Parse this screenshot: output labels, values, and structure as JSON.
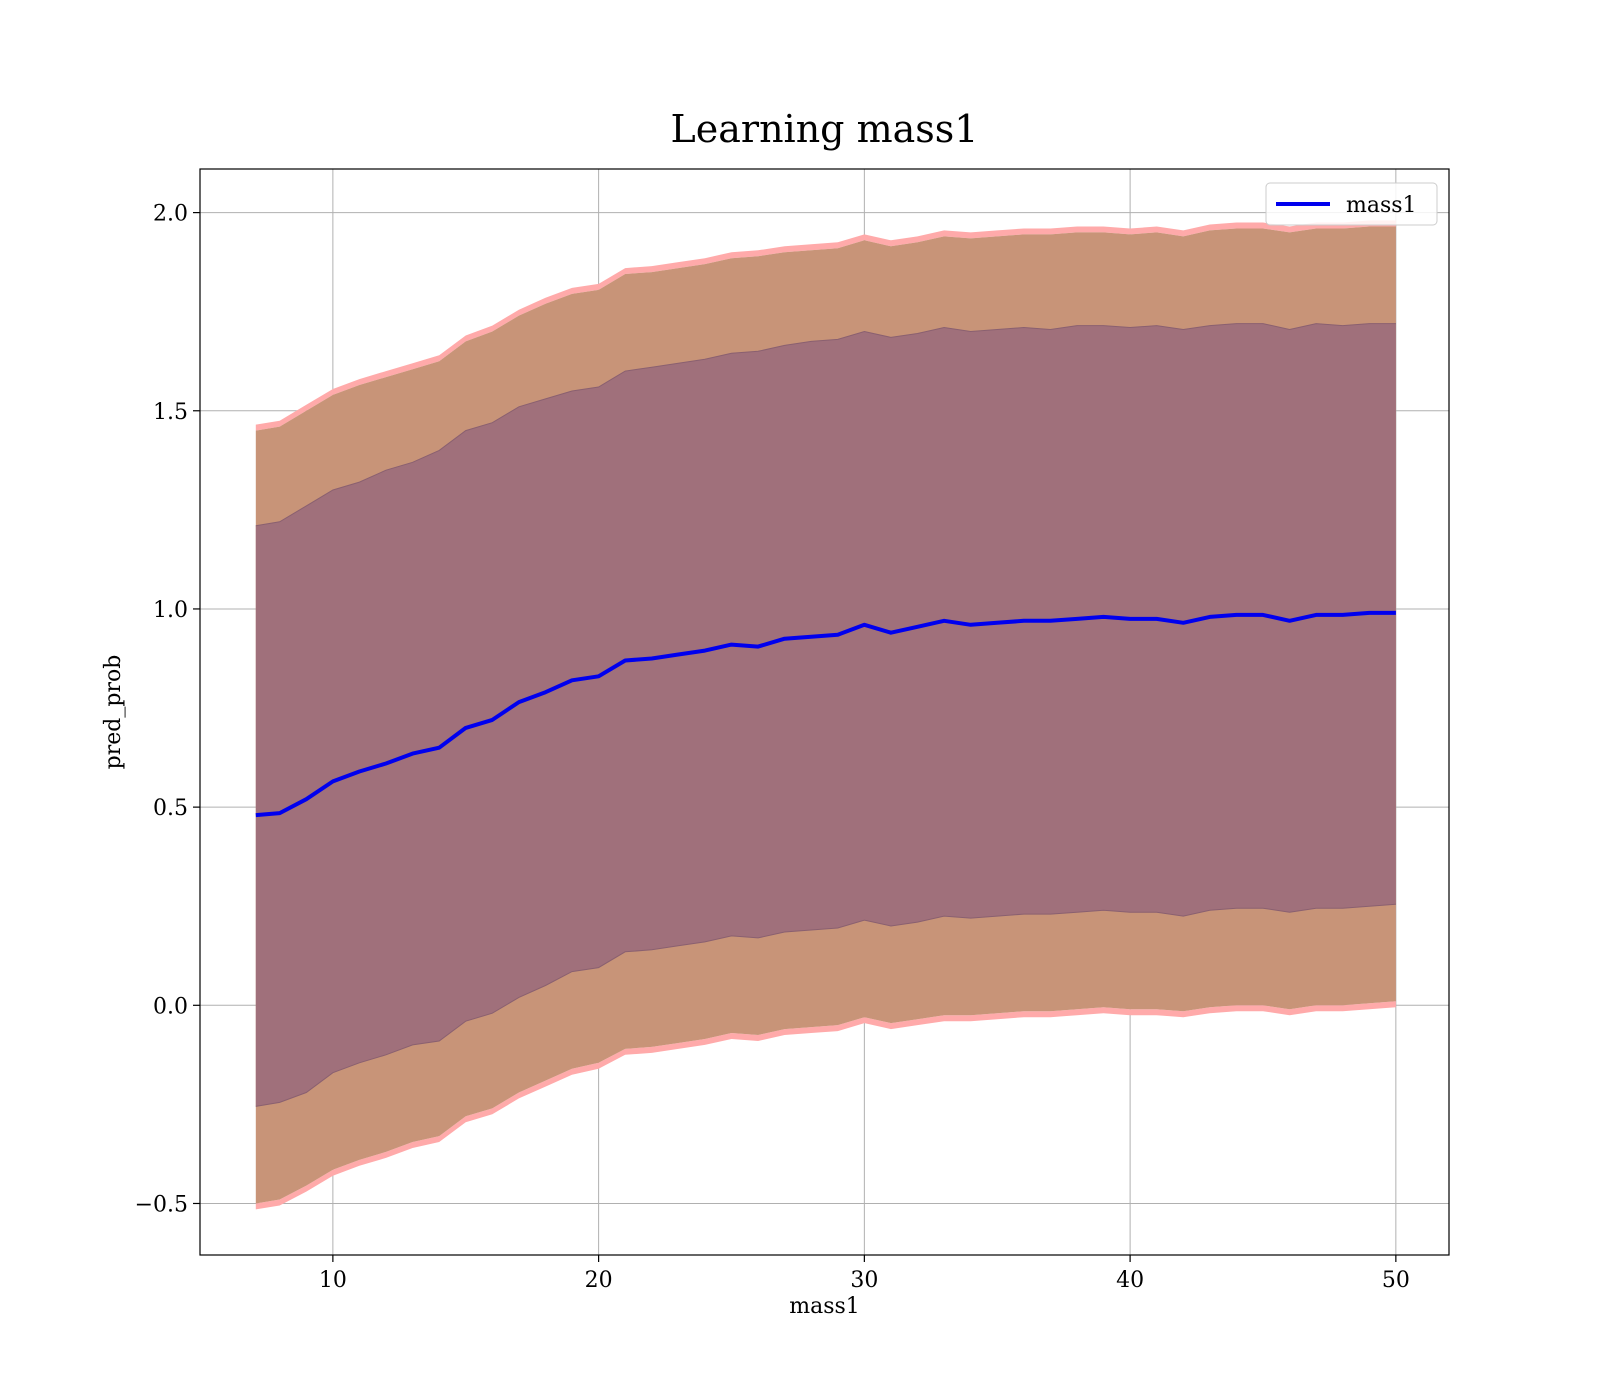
{
  "chart_data": {
    "type": "area",
    "title": "Learning mass1",
    "xlabel": "mass1",
    "ylabel": "pred_prob",
    "xlim": [
      5,
      52
    ],
    "ylim": [
      -0.63,
      2.11
    ],
    "xticks": [
      10,
      20,
      30,
      40,
      50
    ],
    "yticks": [
      -0.5,
      0.0,
      0.5,
      1.0,
      1.5,
      2.0
    ],
    "ytick_labels": [
      "−0.5",
      "0.0",
      "0.5",
      "1.0",
      "1.5",
      "2.0"
    ],
    "grid": true,
    "legend": {
      "position": "top-right",
      "entries": [
        "mass1"
      ]
    },
    "x": [
      7.1,
      8.0,
      9.0,
      10.0,
      11.0,
      12.0,
      13.0,
      14.0,
      15.0,
      16.0,
      17.0,
      18.0,
      19.0,
      20.0,
      21.0,
      22.0,
      23.0,
      24.0,
      25.0,
      26.0,
      27.0,
      28.0,
      29.0,
      30.0,
      31.0,
      32.0,
      33.0,
      34.0,
      35.0,
      36.0,
      37.0,
      38.0,
      39.0,
      40.0,
      41.0,
      42.0,
      43.0,
      44.0,
      45.0,
      46.0,
      47.0,
      48.0,
      49.0,
      50.0
    ],
    "series": [
      {
        "name": "mass1",
        "role": "mean",
        "color": "#0000ee",
        "values": [
          0.48,
          0.485,
          0.52,
          0.565,
          0.59,
          0.61,
          0.635,
          0.65,
          0.7,
          0.72,
          0.765,
          0.79,
          0.82,
          0.83,
          0.87,
          0.875,
          0.885,
          0.895,
          0.91,
          0.905,
          0.925,
          0.93,
          0.935,
          0.96,
          0.94,
          0.955,
          0.97,
          0.96,
          0.965,
          0.97,
          0.97,
          0.975,
          0.98,
          0.975,
          0.975,
          0.965,
          0.98,
          0.985,
          0.985,
          0.97,
          0.985,
          0.985,
          0.99,
          0.99
        ]
      },
      {
        "role": "inner-band",
        "color": "#a0707b",
        "upper": [
          1.21,
          1.22,
          1.26,
          1.3,
          1.32,
          1.35,
          1.37,
          1.4,
          1.45,
          1.47,
          1.51,
          1.53,
          1.55,
          1.56,
          1.6,
          1.61,
          1.62,
          1.63,
          1.645,
          1.65,
          1.665,
          1.675,
          1.68,
          1.7,
          1.685,
          1.695,
          1.71,
          1.7,
          1.705,
          1.71,
          1.705,
          1.715,
          1.715,
          1.71,
          1.715,
          1.705,
          1.715,
          1.72,
          1.72,
          1.705,
          1.72,
          1.715,
          1.72,
          1.72
        ],
        "lower": [
          -0.255,
          -0.245,
          -0.22,
          -0.17,
          -0.145,
          -0.125,
          -0.1,
          -0.09,
          -0.04,
          -0.02,
          0.02,
          0.05,
          0.085,
          0.095,
          0.135,
          0.14,
          0.15,
          0.16,
          0.175,
          0.17,
          0.185,
          0.19,
          0.195,
          0.215,
          0.2,
          0.21,
          0.225,
          0.22,
          0.225,
          0.23,
          0.23,
          0.235,
          0.24,
          0.235,
          0.235,
          0.225,
          0.24,
          0.245,
          0.245,
          0.235,
          0.245,
          0.245,
          0.25,
          0.255
        ]
      },
      {
        "role": "outer-band",
        "color": "#c89478",
        "upper": [
          1.45,
          1.46,
          1.5,
          1.54,
          1.565,
          1.585,
          1.605,
          1.625,
          1.675,
          1.7,
          1.74,
          1.77,
          1.795,
          1.805,
          1.845,
          1.85,
          1.86,
          1.87,
          1.885,
          1.89,
          1.9,
          1.905,
          1.91,
          1.93,
          1.915,
          1.925,
          1.94,
          1.935,
          1.94,
          1.945,
          1.945,
          1.95,
          1.95,
          1.945,
          1.95,
          1.94,
          1.955,
          1.96,
          1.96,
          1.95,
          1.96,
          1.96,
          1.965,
          1.965
        ],
        "lower": [
          -0.5,
          -0.49,
          -0.455,
          -0.415,
          -0.39,
          -0.37,
          -0.345,
          -0.33,
          -0.28,
          -0.26,
          -0.22,
          -0.19,
          -0.16,
          -0.145,
          -0.11,
          -0.105,
          -0.095,
          -0.085,
          -0.07,
          -0.075,
          -0.06,
          -0.055,
          -0.05,
          -0.03,
          -0.045,
          -0.035,
          -0.025,
          -0.025,
          -0.02,
          -0.015,
          -0.015,
          -0.01,
          -0.005,
          -0.01,
          -0.01,
          -0.015,
          -0.005,
          0.0,
          0.0,
          -0.01,
          0.0,
          0.0,
          0.005,
          0.01
        ]
      }
    ]
  },
  "colors": {
    "outer_edge": "#ffaaaa",
    "grid": "#b0b0b0",
    "axes": "#000000",
    "mean_line": "#0000ee"
  }
}
